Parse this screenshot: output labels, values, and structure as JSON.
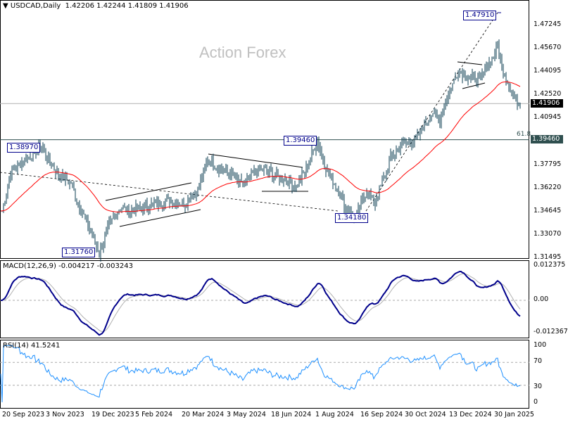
{
  "header": {
    "symbol": "USDCAD,Daily",
    "open": "1.42206",
    "high": "1.42244",
    "low": "1.41809",
    "close": "1.41906"
  },
  "watermark": "Action Forex",
  "chart_data": {
    "type": "ohlc",
    "title": "USDCAD,Daily",
    "price_axis": [
      "1.47245",
      "1.45670",
      "1.44095",
      "1.42520",
      "1.40945",
      "1.37795",
      "1.36220",
      "1.34645",
      "1.33070",
      "1.31495"
    ],
    "ylim": [
      1.31495,
      1.485
    ],
    "current_price": "1.41906",
    "level_line": {
      "value": "1.39460",
      "fib_label": "61.8"
    },
    "annotations": [
      {
        "text": "1.38970",
        "value": 1.3897,
        "bar": 29
      },
      {
        "text": "1.31760",
        "value": 1.3176,
        "bar": 70
      },
      {
        "text": "1.39460",
        "value": 1.3946,
        "bar": 225
      },
      {
        "text": "1.34180",
        "value": 1.3418,
        "bar": 253
      },
      {
        "text": "1.47910",
        "value": 1.4791,
        "bar": 353
      }
    ],
    "price_path": {
      "bar": [
        1,
        7,
        15,
        25,
        29,
        35,
        42,
        50,
        55,
        62,
        70,
        77,
        85,
        92,
        100,
        110,
        120,
        130,
        140,
        147,
        155,
        165,
        172,
        180,
        187,
        195,
        202,
        210,
        217,
        225,
        230,
        237,
        245,
        252,
        260,
        265,
        272,
        277,
        285,
        295,
        300,
        307,
        312,
        317,
        325,
        332,
        340,
        345,
        350,
        353,
        356,
        360,
        365,
        369
      ],
      "close": [
        1.3464,
        1.3725,
        1.3797,
        1.3868,
        1.3897,
        1.3797,
        1.3701,
        1.3654,
        1.3511,
        1.3368,
        1.3176,
        1.3368,
        1.3487,
        1.3464,
        1.3487,
        1.3511,
        1.3535,
        1.3511,
        1.3606,
        1.382,
        1.3749,
        1.3701,
        1.363,
        1.3725,
        1.3749,
        1.3701,
        1.3678,
        1.363,
        1.3749,
        1.3946,
        1.3773,
        1.3654,
        1.3487,
        1.3418,
        1.3606,
        1.3511,
        1.3678,
        1.382,
        1.3915,
        1.3939,
        1.4035,
        1.413,
        1.4082,
        1.4225,
        1.4415,
        1.4368,
        1.4344,
        1.4439,
        1.451,
        1.4582,
        1.4439,
        1.4344,
        1.4225,
        1.4191
      ]
    },
    "ma": {
      "color": "#ff0000"
    },
    "macd": {
      "label": "MACD(12,26,9) -0.004217 -0.003243",
      "axis": [
        "0.012375",
        "0.00",
        "-0.012367"
      ],
      "range": [
        -0.012367,
        0.012375
      ],
      "main_color": "#00008b",
      "signal_color": "#b0b0b0"
    },
    "rsi": {
      "label": "RSI(14) 41.5241",
      "axis": [
        "100",
        "70",
        "30",
        "0"
      ],
      "levels": [
        70,
        30
      ],
      "color": "#1e90ff"
    },
    "dates": [
      "20 Sep 2023",
      "3 Nov 2023",
      "19 Dec 2023",
      "5 Feb 2024",
      "20 Mar 2024",
      "3 May 2024",
      "18 Jun 2024",
      "1 Aug 2024",
      "16 Sep 2024",
      "30 Oct 2024",
      "13 Dec 2024",
      "30 Jan 2025"
    ]
  }
}
